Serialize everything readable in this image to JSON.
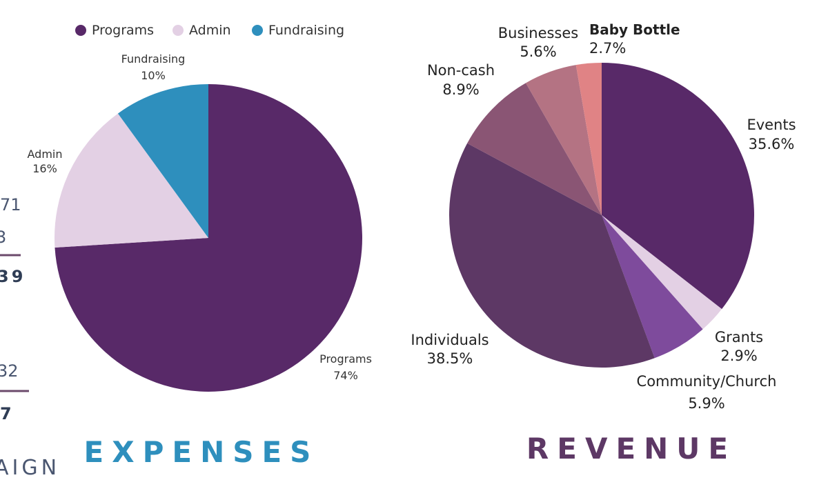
{
  "colors": {
    "programs": "#582968",
    "admin": "#e3d0e4",
    "fundraising": "#2e8fbd",
    "events": "#582968",
    "grants": "#e3d0e4",
    "community": "#7e4b9c",
    "individuals": "#5d3865",
    "noncash": "#8a5574",
    "businesses": "#b47383",
    "babybottle": "#e08385",
    "expenses_title": "#2e8fbd",
    "revenue_title": "#5d3865",
    "fragment_rule": "#6b4a6b"
  },
  "chart_data": [
    {
      "type": "pie",
      "title": "EXPENSES",
      "legend": [
        "Programs",
        "Admin",
        "Fundraising"
      ],
      "slices": [
        {
          "key": "programs",
          "name": "Programs",
          "value": 74,
          "label": "74%"
        },
        {
          "key": "admin",
          "name": "Admin",
          "value": 16,
          "label": "16%"
        },
        {
          "key": "fundraising",
          "name": "Fundraising",
          "value": 10,
          "label": "10%"
        }
      ]
    },
    {
      "type": "pie",
      "title": "REVENUE",
      "slices": [
        {
          "key": "events",
          "name": "Events",
          "value": 35.6,
          "label": "35.6%"
        },
        {
          "key": "grants",
          "name": "Grants",
          "value": 2.9,
          "label": "2.9%"
        },
        {
          "key": "community",
          "name": "Community/Church",
          "value": 5.9,
          "label": "5.9%"
        },
        {
          "key": "individuals",
          "name": "Individuals",
          "value": 38.5,
          "label": "38.5%"
        },
        {
          "key": "noncash",
          "name": "Non-cash",
          "value": 8.9,
          "label": "8.9%"
        },
        {
          "key": "businesses",
          "name": "Businesses",
          "value": 5.6,
          "label": "5.6%"
        },
        {
          "key": "babybottle",
          "name": "Baby Bottle",
          "value": 2.7,
          "label": "2.7%"
        }
      ]
    }
  ],
  "left_fragments": {
    "line1": "71",
    "line2": "3",
    "line3": "39",
    "line4": "32",
    "line5": "7",
    "word": "AIGN"
  }
}
